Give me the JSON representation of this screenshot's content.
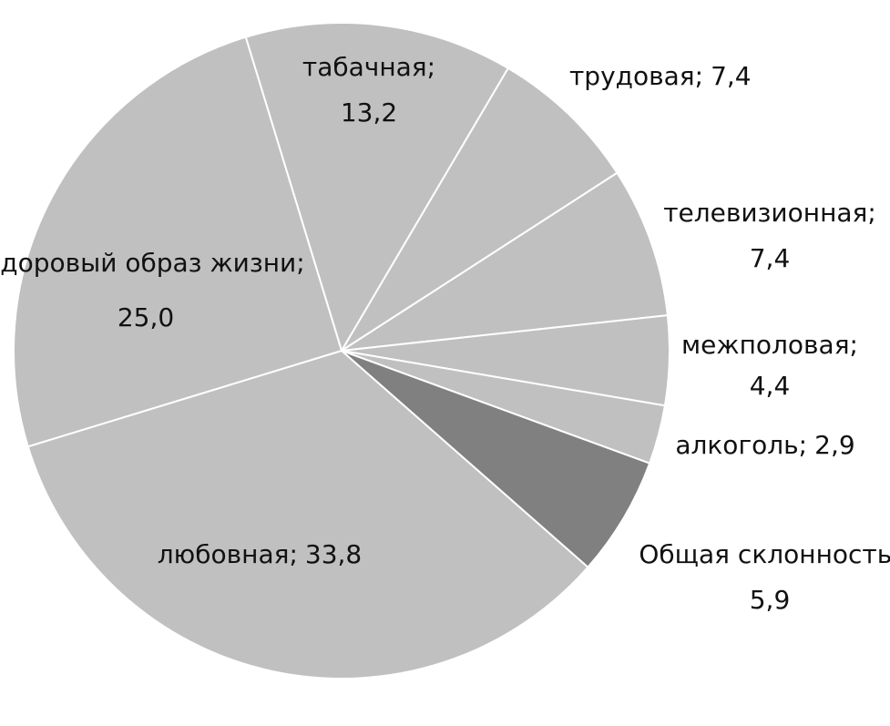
{
  "chart_data": {
    "type": "pie",
    "categories": [
      "табачная;",
      "трудовая;",
      "телевизионная;",
      "межполовая;",
      "алкоголь;",
      "Общая склонность;",
      "любовная;",
      "здоровый образ жизни;"
    ],
    "values": [
      13.2,
      7.4,
      7.4,
      4.4,
      2.9,
      5.9,
      33.8,
      25.0
    ],
    "value_labels": [
      "13,2",
      "7,4",
      "7,4",
      "4,4",
      "2,9",
      "5,9",
      "33,8",
      "25,0"
    ],
    "colors": [
      "#c0c0c0",
      "#c0c0c0",
      "#c0c0c0",
      "#c0c0c0",
      "#c0c0c0",
      "#808080",
      "#c0c0c0",
      "#c0c0c0"
    ]
  }
}
